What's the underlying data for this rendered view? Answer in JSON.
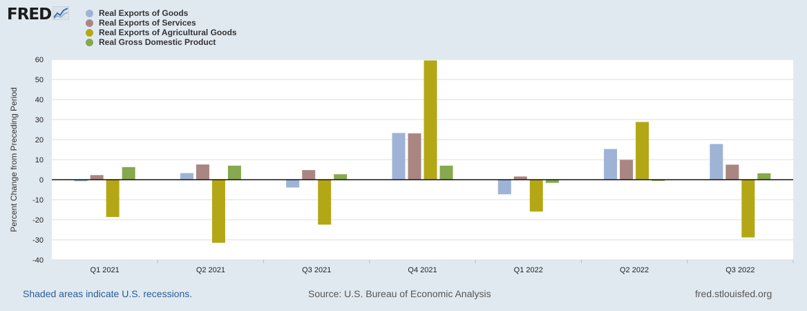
{
  "brand": {
    "name": "FRED",
    "logo_icon": "line-chart-icon"
  },
  "chart_data": {
    "type": "bar",
    "title": "",
    "xlabel": "",
    "ylabel": "Percent Change from Preceding Period",
    "ylim": [
      -40,
      60
    ],
    "yticks": [
      -40,
      -30,
      -20,
      -10,
      0,
      10,
      20,
      30,
      40,
      50,
      60
    ],
    "grid": true,
    "legend_position": "top-left",
    "categories": [
      "Q1 2021",
      "Q2 2021",
      "Q3 2021",
      "Q4 2021",
      "Q1 2022",
      "Q2 2022",
      "Q3 2022"
    ],
    "series": [
      {
        "name": "Real Exports of Goods",
        "color": "#9eb3d6",
        "values": [
          -0.8,
          3.3,
          -3.9,
          23.3,
          -7.3,
          15.3,
          17.8
        ]
      },
      {
        "name": "Real Exports of Services",
        "color": "#a98682",
        "values": [
          2.3,
          7.6,
          4.8,
          23.1,
          1.6,
          9.9,
          7.5
        ]
      },
      {
        "name": "Real Exports of Agricultural Goods",
        "color": "#b3a716",
        "values": [
          -18.6,
          -31.5,
          -22.4,
          59.5,
          -15.9,
          28.8,
          -28.8
        ]
      },
      {
        "name": "Real Gross Domestic Product",
        "color": "#86a84e",
        "values": [
          6.3,
          7.0,
          2.7,
          7.0,
          -1.6,
          -0.6,
          3.2
        ]
      }
    ]
  },
  "footer": {
    "recession_note": "Shaded areas indicate U.S. recessions.",
    "source": "Source: U.S. Bureau of Economic Analysis",
    "site": "fred.stlouisfed.org"
  }
}
